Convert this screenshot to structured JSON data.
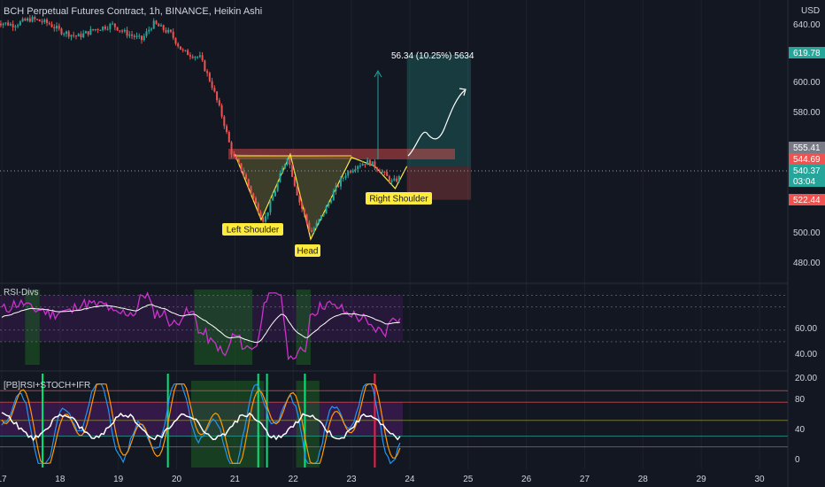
{
  "title": "BCH Perpetual Futures Contract, 1h, BINANCE, Heikin Ashi",
  "currency": "USD",
  "colors": {
    "background": "#131722",
    "up": "#26a69a",
    "down": "#ef5350",
    "text": "#d1d4dc",
    "grid": "#2a2e39",
    "rsi_line": "#cc33cc",
    "rsi_fill": "#7b1fa2",
    "green_zone": "#1b5e20",
    "ma_line": "#ffffff",
    "stoch_k": "#2196f3",
    "stoch_d": "#ff9800",
    "label_bg": "#ffeb3b",
    "pattern_fill": "#8d8a3b"
  },
  "price_axis": {
    "ticks": [
      "640.00",
      "600.00",
      "580.00",
      "500.00",
      "480.00"
    ],
    "badges": [
      {
        "value": "619.78",
        "color": "#26a69a"
      },
      {
        "value": "555.41",
        "color": "#787b86"
      },
      {
        "value": "544.69",
        "color": "#ef5350"
      },
      {
        "value": "540.37",
        "color": "#26a69a",
        "sub": "03:04"
      },
      {
        "value": "522.44",
        "color": "#ef5350"
      }
    ]
  },
  "x_axis": {
    "ticks": [
      "17",
      "18",
      "19",
      "20",
      "21",
      "22",
      "23",
      "24",
      "25",
      "26",
      "27",
      "28",
      "29",
      "30"
    ]
  },
  "annotations": {
    "measure": "56.34 (10.25%) 5634",
    "left_shoulder": "Left Shoulder",
    "head": "Head",
    "right_shoulder": "Right Shoulder"
  },
  "rsi_panel": {
    "name": "RSI-Divs",
    "ticks": [
      "60.00",
      "40.00",
      "20.00"
    ]
  },
  "stoch_panel": {
    "name": "[PB]RSI+STOCH+IFR",
    "ticks": [
      "80",
      "40",
      "0"
    ]
  },
  "chart_data": {
    "type": "candlestick",
    "title": "BCH Perpetual Futures Contract, 1h, BINANCE, Heikin Ashi",
    "x_range_days": [
      17,
      30
    ],
    "y_range": [
      470,
      650
    ],
    "price_path": [
      [
        16.9,
        642
      ],
      [
        17.2,
        640
      ],
      [
        17.5,
        644
      ],
      [
        17.8,
        641
      ],
      [
        18.0,
        636
      ],
      [
        18.3,
        632
      ],
      [
        18.6,
        637
      ],
      [
        18.9,
        640
      ],
      [
        19.1,
        635
      ],
      [
        19.4,
        630
      ],
      [
        19.6,
        641
      ],
      [
        19.9,
        634
      ],
      [
        20.1,
        622
      ],
      [
        20.4,
        618
      ],
      [
        20.6,
        600
      ],
      [
        20.8,
        576
      ],
      [
        20.95,
        553
      ],
      [
        21.15,
        540
      ],
      [
        21.35,
        520
      ],
      [
        21.5,
        508
      ],
      [
        21.7,
        530
      ],
      [
        21.9,
        552
      ],
      [
        22.1,
        522
      ],
      [
        22.3,
        500
      ],
      [
        22.5,
        512
      ],
      [
        22.7,
        528
      ],
      [
        22.9,
        540
      ],
      [
        23.1,
        546
      ],
      [
        23.3,
        548
      ],
      [
        23.5,
        542
      ],
      [
        23.7,
        534
      ],
      [
        23.85,
        538
      ]
    ],
    "pattern": {
      "name": "inverse head and shoulders",
      "points": [
        [
          21.0,
          553
        ],
        [
          21.45,
          509
        ],
        [
          21.95,
          553
        ],
        [
          22.3,
          496
        ],
        [
          23.0,
          551
        ],
        [
          23.4,
          545
        ],
        [
          23.75,
          530
        ],
        [
          23.95,
          545
        ]
      ],
      "neckline": 552,
      "labels": [
        "Left Shoulder",
        "Head",
        "Right Shoulder"
      ]
    },
    "long_position": {
      "entry": 544.69,
      "target": 619.78,
      "stop": 522.44,
      "from_day": 23.95,
      "to_day": 25.05
    },
    "projection": [
      [
        23.95,
        546
      ],
      [
        24.1,
        556
      ],
      [
        24.3,
        553
      ],
      [
        24.55,
        572
      ],
      [
        24.75,
        593
      ]
    ],
    "rsi": {
      "name": "RSI-Divs",
      "y_range": [
        10,
        75
      ],
      "levels": [
        70,
        60,
        40,
        30
      ]
    },
    "stoch": {
      "name": "[PB]RSI+STOCH+IFR",
      "y_range": [
        -5,
        100
      ],
      "levels": [
        88,
        74,
        52,
        33,
        20
      ]
    }
  }
}
